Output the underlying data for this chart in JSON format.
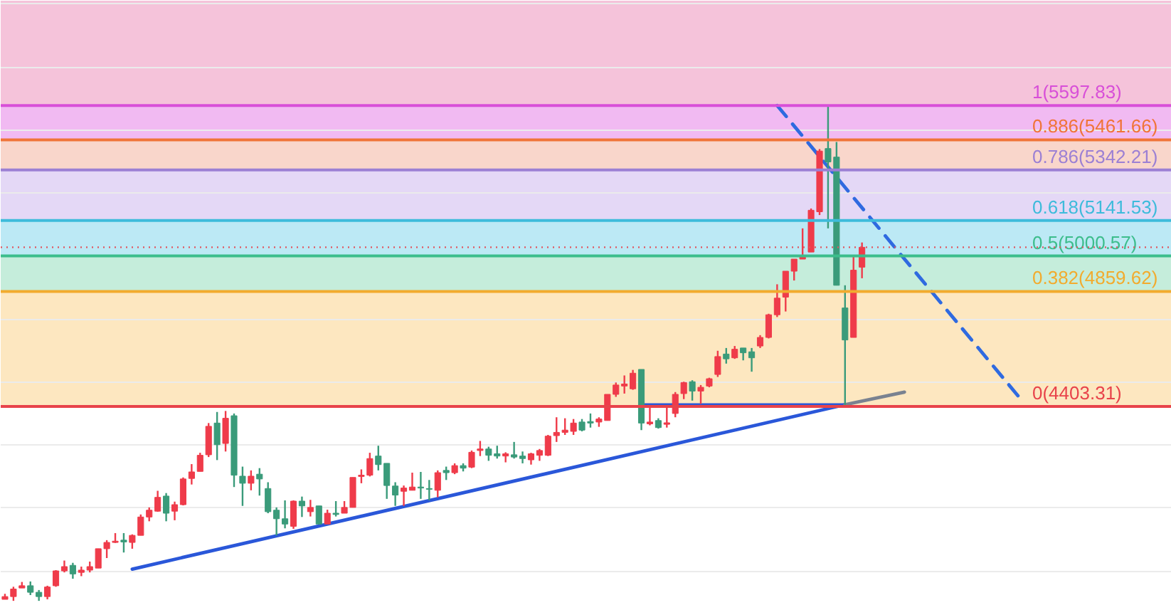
{
  "chart_data": {
    "type": "candlestick",
    "categories": [
      null,
      null,
      null,
      null,
      null,
      null,
      null,
      null,
      null,
      null,
      null,
      null,
      null,
      null,
      null,
      null,
      null,
      null,
      null,
      null,
      null,
      null,
      null,
      null,
      null,
      null,
      null,
      null,
      null,
      null,
      null,
      null,
      null,
      null,
      null,
      null,
      null,
      null,
      null,
      null,
      null,
      null,
      null,
      null,
      null,
      null,
      null,
      null,
      null,
      null,
      null,
      null,
      null,
      null,
      null,
      null,
      null,
      null,
      null,
      null,
      null,
      null,
      null,
      null,
      null,
      null,
      null,
      null,
      null,
      null,
      null,
      null,
      null,
      null,
      null,
      null,
      null,
      null,
      null,
      null,
      null,
      null,
      null,
      null,
      null,
      null,
      null,
      null,
      null,
      null,
      null,
      null,
      null,
      null,
      null,
      null,
      null,
      null,
      null,
      null,
      null,
      null,
      null,
      null,
      null,
      null,
      null,
      null,
      null,
      null,
      null,
      null,
      null,
      null,
      null,
      null,
      null,
      null,
      null,
      null,
      null,
      null,
      null,
      null,
      null,
      null,
      null,
      null,
      null,
      null,
      null,
      null,
      null,
      null,
      null,
      null,
      null,
      null
    ],
    "ohlc": [
      [
        3637,
        3659,
        3637,
        3648
      ],
      [
        3648,
        3687,
        3631,
        3678
      ],
      [
        3682,
        3706,
        3682,
        3691
      ],
      [
        3691,
        3708,
        3654,
        3665
      ],
      [
        3665,
        3674,
        3631,
        3648
      ],
      [
        3648,
        3691,
        3637,
        3686
      ],
      [
        3691,
        3753,
        3687,
        3750
      ],
      [
        3750,
        3791,
        3744,
        3767
      ],
      [
        3772,
        3782,
        3719,
        3738
      ],
      [
        3744,
        3767,
        3729,
        3753
      ],
      [
        3753,
        3787,
        3744,
        3767
      ],
      [
        3761,
        3838,
        3761,
        3838
      ],
      [
        3838,
        3872,
        3801,
        3863
      ],
      [
        3863,
        3900,
        3861,
        3868
      ],
      [
        3872,
        3900,
        3823,
        3865
      ],
      [
        3863,
        3895,
        3838,
        3891
      ],
      [
        3891,
        3974,
        3891,
        3964
      ],
      [
        3964,
        4002,
        3947,
        3991
      ],
      [
        3987,
        4068,
        3985,
        4042
      ],
      [
        4047,
        4059,
        3947,
        3979
      ],
      [
        3987,
        4025,
        3951,
        4013
      ],
      [
        4013,
        4121,
        4010,
        4115
      ],
      [
        4117,
        4174,
        4093,
        4143
      ],
      [
        4145,
        4219,
        4145,
        4209
      ],
      [
        4211,
        4337,
        4202,
        4324
      ],
      [
        4337,
        4381,
        4190,
        4251
      ],
      [
        4256,
        4385,
        4224,
        4356
      ],
      [
        4366,
        4375,
        4083,
        4130
      ],
      [
        4126,
        4164,
        4008,
        4098
      ],
      [
        4098,
        4149,
        4070,
        4126
      ],
      [
        4134,
        4158,
        4049,
        4115
      ],
      [
        4077,
        4102,
        3979,
        3985
      ],
      [
        3991,
        4002,
        3891,
        3957
      ],
      [
        3957,
        4030,
        3919,
        3936
      ],
      [
        3927,
        4030,
        3917,
        4027
      ],
      [
        4027,
        4045,
        3964,
        4008
      ],
      [
        3985,
        4032,
        3966,
        4002
      ],
      [
        4008,
        4008,
        3934,
        3936
      ],
      [
        3936,
        3993,
        3936,
        3979
      ],
      [
        3979,
        4027,
        3966,
        3974
      ],
      [
        3979,
        4027,
        3979,
        4002
      ],
      [
        4002,
        4121,
        4002,
        4121
      ],
      [
        4125,
        4153,
        4098,
        4130
      ],
      [
        4130,
        4219,
        4125,
        4196
      ],
      [
        4206,
        4247,
        4149,
        4172
      ],
      [
        4177,
        4177,
        4036,
        4089
      ],
      [
        4087,
        4102,
        4008,
        4051
      ],
      [
        4066,
        4089,
        4008,
        4079
      ],
      [
        4070,
        4140,
        4070,
        4083
      ],
      [
        4083,
        4143,
        4036,
        4079
      ],
      [
        4077,
        4111,
        4030,
        4074
      ],
      [
        4070,
        4149,
        4042,
        4140
      ],
      [
        4149,
        4164,
        4111,
        4140
      ],
      [
        4140,
        4177,
        4134,
        4168
      ],
      [
        4168,
        4177,
        4145,
        4158
      ],
      [
        4162,
        4228,
        4158,
        4221
      ],
      [
        4228,
        4266,
        4206,
        4234
      ],
      [
        4234,
        4243,
        4187,
        4209
      ],
      [
        4215,
        4247,
        4196,
        4206
      ],
      [
        4206,
        4221,
        4181,
        4215
      ],
      [
        4211,
        4262,
        4196,
        4202
      ],
      [
        4206,
        4224,
        4177,
        4196
      ],
      [
        4191,
        4219,
        4172,
        4215
      ],
      [
        4209,
        4234,
        4187,
        4228
      ],
      [
        4209,
        4290,
        4206,
        4285
      ],
      [
        4287,
        4360,
        4262,
        4300
      ],
      [
        4300,
        4356,
        4290,
        4309
      ],
      [
        4304,
        4353,
        4290,
        4337
      ],
      [
        4341,
        4353,
        4304,
        4309
      ],
      [
        4343,
        4375,
        4319,
        4337
      ],
      [
        4341,
        4360,
        4322,
        4353
      ],
      [
        4347,
        4451,
        4347,
        4451
      ],
      [
        4451,
        4498,
        4441,
        4488
      ],
      [
        4484,
        4526,
        4454,
        4492
      ],
      [
        4473,
        4548,
        4469,
        4535
      ],
      [
        4550,
        4550,
        4309,
        4337
      ],
      [
        4334,
        4403,
        4328,
        4341
      ],
      [
        4347,
        4356,
        4315,
        4319
      ],
      [
        4332,
        4403,
        4319,
        4338
      ],
      [
        4375,
        4460,
        4360,
        4451
      ],
      [
        4454,
        4501,
        4432,
        4498
      ],
      [
        4501,
        4507,
        4426,
        4464
      ],
      [
        4464,
        4488,
        4413,
        4479
      ],
      [
        4484,
        4517,
        4479,
        4513
      ],
      [
        4530,
        4624,
        4520,
        4601
      ],
      [
        4611,
        4635,
        4573,
        4592
      ],
      [
        4596,
        4643,
        4592,
        4630
      ],
      [
        4635,
        4635,
        4586,
        4616
      ],
      [
        4620,
        4635,
        4541,
        4596
      ],
      [
        4643,
        4686,
        4635,
        4677
      ],
      [
        4677,
        4771,
        4673,
        4767
      ],
      [
        4767,
        4888,
        4758,
        4833
      ],
      [
        4837,
        4940,
        4780,
        4940
      ],
      [
        4940,
        4988,
        4903,
        4988
      ],
      [
        4988,
        5110,
        4988,
        4997
      ],
      [
        5016,
        5189,
        5016,
        5182
      ],
      [
        5176,
        5425,
        5163,
        5417
      ],
      [
        5427,
        5598,
        5110,
        5374
      ],
      [
        5393,
        5453,
        4884,
        4884
      ],
      [
        4794,
        4884,
        4403,
        4667
      ],
      [
        4677,
        4997,
        4677,
        4944
      ],
      [
        4956,
        5054,
        4912,
        5035
      ],
      null,
      null,
      null,
      null,
      null,
      null,
      null,
      null,
      null,
      null,
      null,
      null,
      null,
      null,
      null,
      null,
      null,
      null,
      null,
      null,
      null,
      null,
      null,
      null,
      null,
      null,
      null,
      null,
      null,
      null,
      null,
      null,
      null,
      null,
      null,
      null
    ],
    "colors": [
      "#ef3b4a",
      "#ef3b4a",
      "#ef3b4a",
      "#3a9b7a",
      "#3a9b7a",
      "#ef3b4a",
      "#ef3b4a",
      "#ef3b4a",
      "#3a9b7a",
      "#ef3b4a",
      "#ef3b4a",
      "#ef3b4a",
      "#ef3b4a",
      "#ef3b4a",
      "#3a9b7a",
      "#ef3b4a",
      "#ef3b4a",
      "#ef3b4a",
      "#ef3b4a",
      "#3a9b7a",
      "#ef3b4a",
      "#ef3b4a",
      "#ef3b4a",
      "#ef3b4a",
      "#ef3b4a",
      "#3a9b7a",
      "#ef3b4a",
      "#3a9b7a",
      "#3a9b7a",
      "#ef3b4a",
      "#3a9b7a",
      "#3a9b7a",
      "#3a9b7a",
      "#3a9b7a",
      "#ef3b4a",
      "#3a9b7a",
      "#ef3b4a",
      "#3a9b7a",
      "#ef3b4a",
      "#3a9b7a",
      "#ef3b4a",
      "#ef3b4a",
      "#ef3b4a",
      "#ef3b4a",
      "#3a9b7a",
      "#3a9b7a",
      "#3a9b7a",
      "#ef3b4a",
      "#ef3b4a",
      "#3a9b7a",
      "#3a9b7a",
      "#ef3b4a",
      "#3a9b7a",
      "#ef3b4a",
      "#3a9b7a",
      "#ef3b4a",
      "#ef3b4a",
      "#3a9b7a",
      "#3a9b7a",
      "#ef3b4a",
      "#3a9b7a",
      "#3a9b7a",
      "#ef3b4a",
      "#ef3b4a",
      "#ef3b4a",
      "#ef3b4a",
      "#ef3b4a",
      "#ef3b4a",
      "#3a9b7a",
      "#3a9b7a",
      "#ef3b4a",
      "#ef3b4a",
      "#ef3b4a",
      "#ef3b4a",
      "#ef3b4a",
      "#3a9b7a",
      "#ef3b4a",
      "#3a9b7a",
      "#ef3b4a",
      "#ef3b4a",
      "#ef3b4a",
      "#3a9b7a",
      "#ef3b4a",
      "#ef3b4a",
      "#ef3b4a",
      "#3a9b7a",
      "#ef3b4a",
      "#3a9b7a",
      "#3a9b7a",
      "#ef3b4a",
      "#ef3b4a",
      "#ef3b4a",
      "#ef3b4a",
      "#ef3b4a",
      "#ef3b4a",
      "#ef3b4a",
      "#ef3b4a",
      "#3a9b7a",
      "#3a9b7a",
      "#3a9b7a",
      "#ef3b4a",
      "#ef3b4a",
      null,
      null,
      null,
      null,
      null,
      null,
      null,
      null,
      null,
      null,
      null,
      null,
      null,
      null,
      null,
      null,
      null,
      null,
      null,
      null,
      null,
      null,
      null,
      null,
      null,
      null,
      null,
      null,
      null,
      null,
      null,
      null,
      null,
      null,
      null,
      null
    ],
    "series": [
      {
        "type": "line",
        "color": "#2a57d9",
        "values": [
          null,
          null,
          null,
          null,
          null,
          null,
          null,
          null,
          null,
          null,
          null,
          null,
          null,
          null,
          null,
          3757,
          null,
          null,
          null,
          null,
          null,
          null,
          null,
          null,
          null,
          null,
          null,
          null,
          null,
          null,
          null,
          null,
          null,
          null,
          null,
          null,
          null,
          null,
          null,
          null,
          null,
          null,
          null,
          null,
          null,
          null,
          null,
          null,
          null,
          null,
          null,
          null,
          null,
          null,
          null,
          null,
          null,
          null,
          null,
          null,
          null,
          null,
          null,
          null,
          null,
          null,
          null,
          null,
          null,
          null,
          null,
          null,
          null,
          null,
          null,
          null,
          null,
          null,
          null,
          null,
          null,
          null,
          null,
          null,
          null,
          null,
          null,
          null,
          null,
          null,
          null,
          null,
          null,
          null,
          null,
          null,
          null,
          null,
          null,
          4410,
          null,
          null,
          null,
          null,
          null,
          null,
          null,
          null,
          null,
          null,
          null,
          null,
          null,
          null,
          null,
          null,
          null,
          null,
          null,
          null,
          null,
          null,
          null,
          null,
          null,
          null,
          null,
          null,
          null,
          null,
          null,
          null,
          null,
          null,
          null,
          null,
          null,
          null
        ]
      },
      {
        "type": "line",
        "color": "#2a57d9",
        "values": [
          null,
          null,
          null,
          null,
          null,
          null,
          null,
          null,
          null,
          null,
          null,
          null,
          null,
          null,
          null,
          null,
          null,
          null,
          null,
          null,
          null,
          null,
          null,
          null,
          null,
          null,
          null,
          null,
          null,
          null,
          null,
          null,
          null,
          null,
          null,
          null,
          null,
          null,
          null,
          null,
          null,
          null,
          null,
          null,
          null,
          null,
          null,
          null,
          null,
          null,
          null,
          null,
          null,
          null,
          null,
          null,
          null,
          null,
          null,
          null,
          null,
          null,
          null,
          null,
          null,
          null,
          null,
          null,
          null,
          null,
          null,
          null,
          null,
          null,
          null,
          4409,
          null,
          null,
          null,
          null,
          null,
          null,
          null,
          null,
          null,
          null,
          null,
          null,
          null,
          null,
          null,
          null,
          null,
          null,
          null,
          null,
          null,
          null,
          null,
          4409,
          null,
          null,
          null,
          null,
          null,
          null,
          null,
          null,
          null,
          null,
          null,
          null,
          null,
          null,
          null,
          null,
          null,
          null,
          null,
          null,
          null,
          null,
          null,
          null,
          null,
          null,
          null,
          null,
          null,
          null,
          null,
          null,
          null,
          null,
          null,
          null,
          null,
          null
        ]
      },
      {
        "type": "line",
        "color": "#2f6ae0",
        "line_style": "dashed",
        "values": [
          null,
          null,
          null,
          null,
          null,
          null,
          null,
          null,
          null,
          null,
          null,
          null,
          null,
          null,
          null,
          null,
          null,
          null,
          null,
          null,
          null,
          null,
          null,
          null,
          null,
          null,
          null,
          null,
          null,
          null,
          null,
          null,
          null,
          null,
          null,
          null,
          null,
          null,
          null,
          null,
          null,
          null,
          null,
          null,
          null,
          null,
          null,
          null,
          null,
          null,
          null,
          null,
          null,
          null,
          null,
          null,
          null,
          null,
          null,
          null,
          null,
          null,
          null,
          null,
          null,
          null,
          null,
          null,
          null,
          null,
          null,
          null,
          null,
          null,
          null,
          null,
          null,
          null,
          null,
          null,
          null,
          null,
          null,
          null,
          null,
          null,
          null,
          null,
          null,
          null,
          null,
          5598,
          null,
          null,
          null,
          null,
          null,
          null,
          null,
          null,
          null,
          null,
          null,
          null,
          null,
          null,
          null,
          null,
          null,
          null,
          null,
          null,
          null,
          null,
          null,
          null,
          null,
          null,
          null,
          null,
          4420,
          null,
          null,
          null,
          null,
          null,
          null,
          null,
          null,
          null,
          null,
          null,
          null,
          null,
          null,
          null,
          null,
          null
        ]
      },
      {
        "type": "line",
        "color": "#7a8290",
        "values": [
          null,
          null,
          null,
          null,
          null,
          null,
          null,
          null,
          null,
          null,
          null,
          null,
          null,
          null,
          null,
          null,
          null,
          null,
          null,
          null,
          null,
          null,
          null,
          null,
          null,
          null,
          null,
          null,
          null,
          null,
          null,
          null,
          null,
          null,
          null,
          null,
          null,
          null,
          null,
          null,
          null,
          null,
          null,
          null,
          null,
          null,
          null,
          null,
          null,
          null,
          null,
          null,
          null,
          null,
          null,
          null,
          null,
          null,
          null,
          null,
          null,
          null,
          null,
          null,
          null,
          null,
          null,
          null,
          null,
          null,
          null,
          null,
          null,
          null,
          null,
          null,
          null,
          null,
          null,
          null,
          null,
          null,
          null,
          null,
          null,
          null,
          null,
          null,
          null,
          null,
          null,
          null,
          null,
          null,
          null,
          null,
          null,
          null,
          null,
          4410,
          null,
          null,
          null,
          null,
          null,
          null,
          4460,
          null,
          null,
          null,
          null,
          null,
          null,
          null,
          null,
          null,
          null,
          null,
          null,
          null,
          null,
          null,
          null,
          null,
          null,
          null,
          null,
          null,
          null,
          null,
          null,
          null,
          null,
          null,
          null,
          null,
          null,
          null
        ]
      }
    ],
    "ylim": [
      3572,
      6014
    ],
    "yticks": [
      {
        "value": 3750,
        "label": null
      },
      {
        "value": 4000,
        "label": null
      },
      {
        "value": 4250,
        "label": null
      },
      {
        "value": 4500,
        "label": null
      },
      {
        "value": 4750,
        "label": null
      },
      {
        "value": 5000,
        "label": null
      },
      {
        "value": 5250,
        "label": null
      },
      {
        "value": 5500,
        "label": null
      },
      {
        "value": 5750,
        "label": null
      },
      {
        "value": 6000,
        "label": null
      }
    ],
    "grid": "y",
    "tick_labels": false,
    "bands": [
      {
        "axis": "y",
        "from": 5597.83,
        "to": 6014,
        "color": "#f5c3da"
      },
      {
        "axis": "y",
        "from": 5461.66,
        "to": 5597.83,
        "color": "#f1baf2"
      },
      {
        "axis": "y",
        "from": 5342.21,
        "to": 5461.66,
        "color": "#f9d6cb"
      },
      {
        "axis": "y",
        "from": 5141.53,
        "to": 5342.21,
        "color": "#e4d8f6"
      },
      {
        "axis": "y",
        "from": 5000.57,
        "to": 5141.53,
        "color": "#bce9f5"
      },
      {
        "axis": "y",
        "from": 4859.62,
        "to": 5000.57,
        "color": "#c5eddb"
      },
      {
        "axis": "y",
        "from": 4403.31,
        "to": 4859.62,
        "color": "#fde7c0"
      }
    ],
    "ref_lines": [
      {
        "axis": "y",
        "value": 5597.83,
        "label": "1(5597.83)",
        "color": "#d84fd8"
      },
      {
        "axis": "y",
        "value": 5461.66,
        "label": "0.886(5461.66)",
        "color": "#f07438"
      },
      {
        "axis": "y",
        "value": 5342.21,
        "label": "0.786(5342.21)",
        "color": "#9c80d4"
      },
      {
        "axis": "y",
        "value": 5141.53,
        "label": "0.618(5141.53)",
        "color": "#3ebbdb"
      },
      {
        "axis": "y",
        "value": 5000.57,
        "label": "0.5(5000.57)",
        "color": "#3cbd8c"
      },
      {
        "axis": "y",
        "value": 4859.62,
        "label": "0.382(4859.62)",
        "color": "#f2ab2e"
      },
      {
        "axis": "y",
        "value": 4403.31,
        "label": "0(4403.31)",
        "color": "#e8434b"
      },
      {
        "axis": "y",
        "value": 5035,
        "color": "#e05660",
        "line_style": "dotted"
      }
    ]
  }
}
